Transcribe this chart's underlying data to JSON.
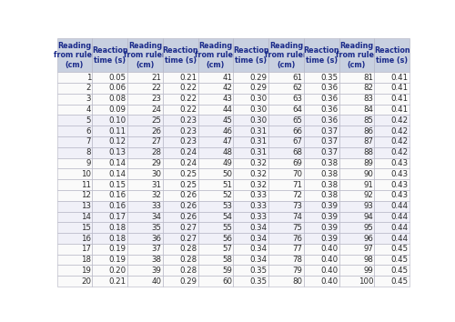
{
  "col_headers": [
    "Reading\nfrom ruler\n(cm)",
    "Reaction\ntime (s)",
    "Reading\nfrom ruler\n(cm)",
    "Reaction\ntime (s)",
    "Reading\nfrom ruler\n(cm)",
    "Reaction\ntime (s)",
    "Reading\nfrom ruler\n(cm)",
    "Reaction\ntime (s)",
    "Reading\nfrom ruler\n(cm)",
    "Reaction\ntime (s)"
  ],
  "readings": [
    1,
    2,
    3,
    4,
    5,
    6,
    7,
    8,
    9,
    10,
    11,
    12,
    13,
    14,
    15,
    16,
    17,
    18,
    19,
    20
  ],
  "reaction_times": [
    0.05,
    0.06,
    0.08,
    0.09,
    0.1,
    0.11,
    0.12,
    0.13,
    0.14,
    0.14,
    0.15,
    0.16,
    0.16,
    0.17,
    0.18,
    0.18,
    0.19,
    0.19,
    0.2,
    0.21
  ],
  "readings2": [
    21,
    22,
    23,
    24,
    25,
    26,
    27,
    28,
    29,
    30,
    31,
    32,
    33,
    34,
    35,
    36,
    37,
    38,
    39,
    40
  ],
  "reaction_times2": [
    0.21,
    0.22,
    0.22,
    0.22,
    0.23,
    0.23,
    0.23,
    0.24,
    0.24,
    0.25,
    0.25,
    0.26,
    0.26,
    0.26,
    0.27,
    0.27,
    0.28,
    0.28,
    0.28,
    0.29
  ],
  "readings3": [
    41,
    42,
    43,
    44,
    45,
    46,
    47,
    48,
    49,
    50,
    51,
    52,
    53,
    54,
    55,
    56,
    57,
    58,
    59,
    60
  ],
  "reaction_times3": [
    0.29,
    0.29,
    0.3,
    0.3,
    0.3,
    0.31,
    0.31,
    0.31,
    0.32,
    0.32,
    0.32,
    0.33,
    0.33,
    0.33,
    0.34,
    0.34,
    0.34,
    0.34,
    0.35,
    0.35
  ],
  "readings4": [
    61,
    62,
    63,
    64,
    65,
    66,
    67,
    68,
    69,
    70,
    71,
    72,
    73,
    74,
    75,
    76,
    77,
    78,
    79,
    80
  ],
  "reaction_times4": [
    0.35,
    0.36,
    0.36,
    0.36,
    0.36,
    0.37,
    0.37,
    0.37,
    0.38,
    0.38,
    0.38,
    0.38,
    0.39,
    0.39,
    0.39,
    0.39,
    0.4,
    0.4,
    0.4,
    0.4
  ],
  "readings5": [
    81,
    82,
    83,
    84,
    85,
    86,
    87,
    88,
    89,
    90,
    91,
    92,
    93,
    94,
    95,
    96,
    97,
    98,
    99,
    100
  ],
  "reaction_times5": [
    0.41,
    0.41,
    0.41,
    0.41,
    0.42,
    0.42,
    0.42,
    0.42,
    0.43,
    0.43,
    0.43,
    0.43,
    0.44,
    0.44,
    0.44,
    0.44,
    0.45,
    0.45,
    0.45,
    0.45
  ],
  "header_bg": "#c8d0e0",
  "row_bg_light": "#f0f0f8",
  "row_bg_white": "#fafafa",
  "border_color": "#b0b0c0",
  "text_color": "#2a2a2a",
  "header_text_color": "#1a2a8a",
  "header_fontsize": 5.8,
  "data_fontsize": 6.2,
  "fig_width": 5.0,
  "fig_height": 3.54,
  "dpi": 100
}
